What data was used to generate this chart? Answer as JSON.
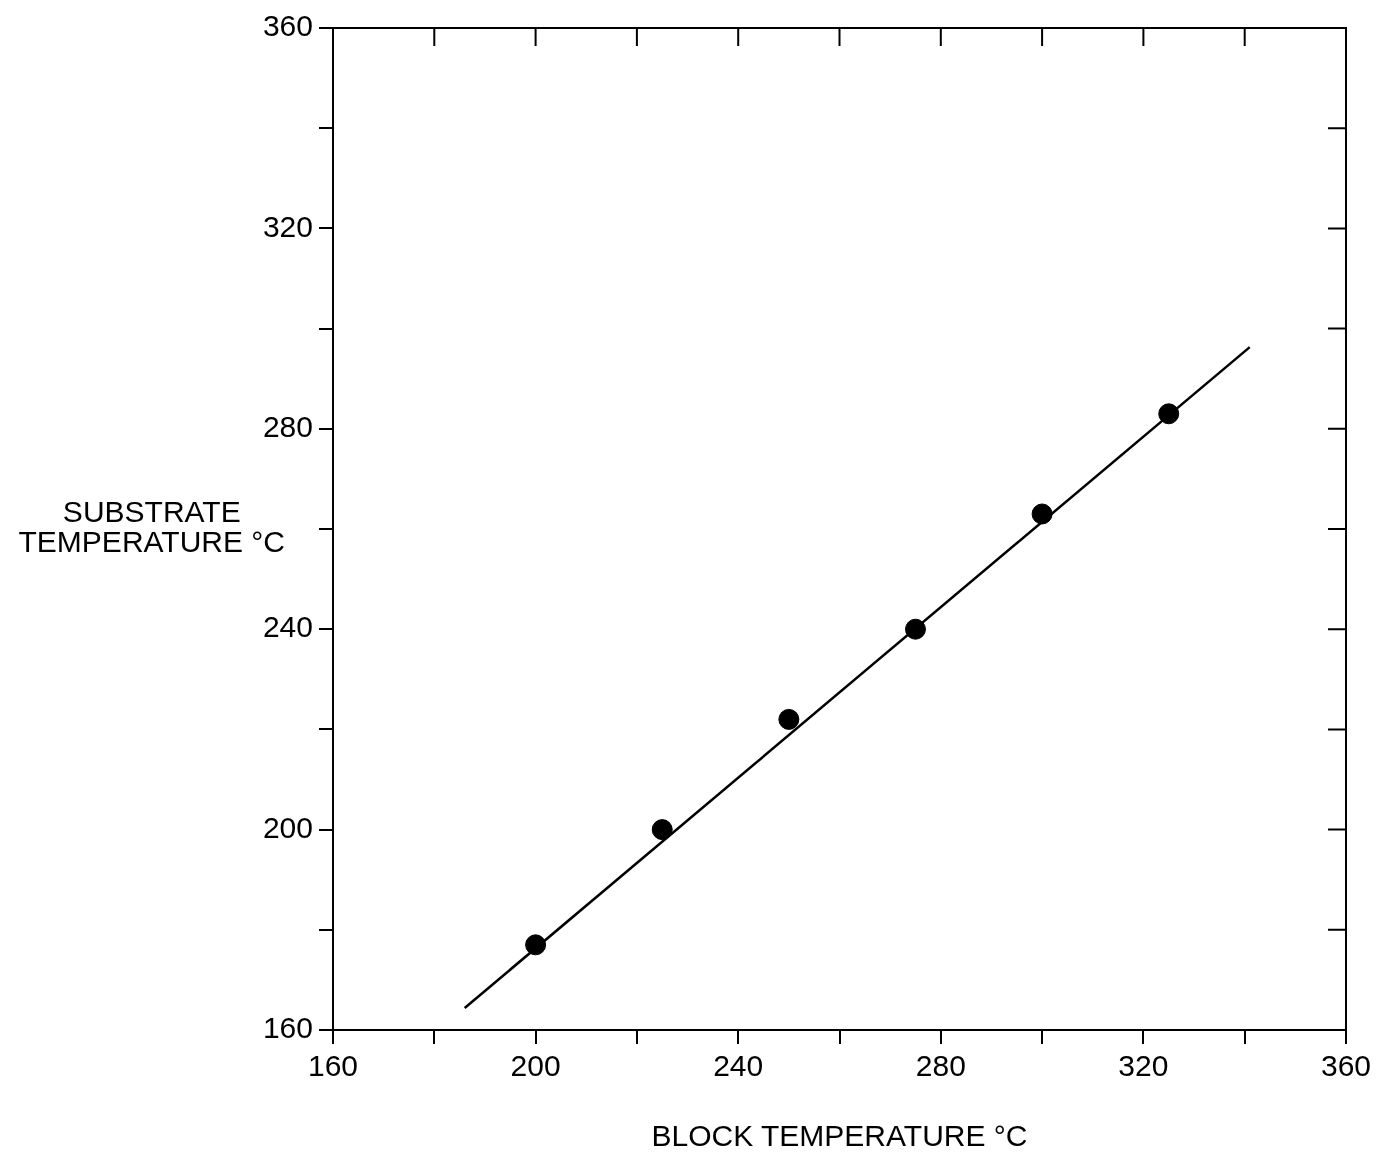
{
  "chart_data": {
    "type": "scatter",
    "xlabel": "BLOCK TEMPERATURE °C",
    "ylabel": "SUBSTRATE TEMPERATURE °C",
    "xlim": [
      160,
      360
    ],
    "ylim": [
      160,
      360
    ],
    "xticks": [
      160,
      {
        "value": 180,
        "label": null
      },
      200,
      {
        "value": 220,
        "label": null
      },
      240,
      {
        "value": 260,
        "label": null
      },
      280,
      {
        "value": 300,
        "label": null
      },
      320,
      {
        "value": 340,
        "label": null
      },
      360
    ],
    "yticks": [
      160,
      {
        "value": 180,
        "label": null
      },
      200,
      {
        "value": 220,
        "label": null
      },
      240,
      {
        "value": 260,
        "label": null
      },
      280,
      {
        "value": 300,
        "label": null
      },
      320,
      {
        "value": 340,
        "label": null
      },
      360
    ],
    "grid": false,
    "legend": false,
    "series": [
      {
        "type": "scatter",
        "color": "#000000",
        "marker": "circle",
        "x": [
          200,
          225,
          250,
          275,
          300,
          325
        ],
        "values": [
          177,
          200,
          222,
          240,
          263,
          283
        ]
      },
      {
        "type": "line",
        "color": "#000000",
        "line_style": "solid",
        "marker": "none",
        "x": [
          186,
          341
        ],
        "values": [
          164.4,
          296.3
        ]
      }
    ]
  }
}
